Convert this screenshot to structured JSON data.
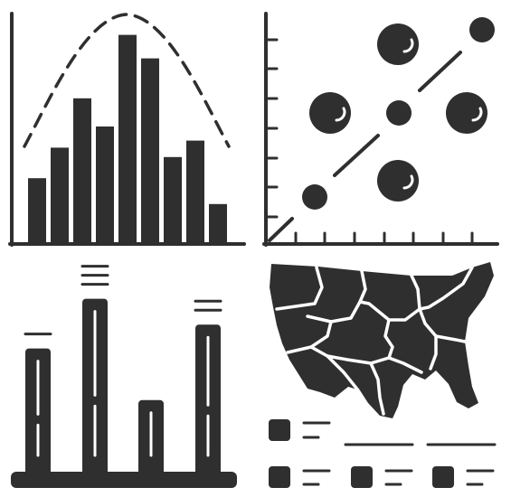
{
  "icon_set": {
    "style": "glyph",
    "ink_color": "#2f2f2f",
    "background_color": "#ffffff",
    "icons": [
      {
        "name": "histogram-with-distribution-curve-icon",
        "bars": [
          0.28,
          0.41,
          0.62,
          0.5,
          0.89,
          0.79,
          0.37,
          0.44,
          0.17
        ]
      },
      {
        "name": "scatter-plot-with-trend-line-icon"
      },
      {
        "name": "bar-chart-with-labels-icon",
        "bars": [
          0.62,
          0.87,
          0.36,
          0.74
        ]
      },
      {
        "name": "map-with-legend-icon"
      }
    ]
  }
}
